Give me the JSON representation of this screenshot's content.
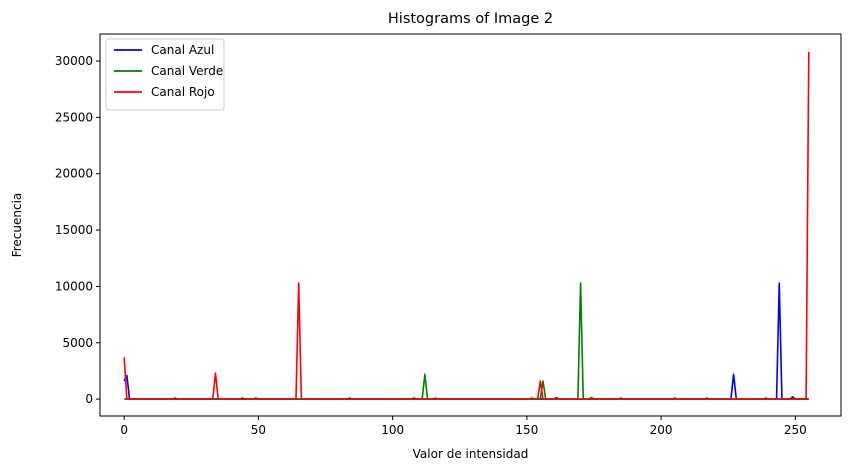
{
  "chart_data": {
    "type": "line",
    "title": "Histograms of Image 2",
    "xlabel": "Valor de intensidad",
    "ylabel": "Frecuencia",
    "xlim": [
      -9,
      267
    ],
    "ylim": [
      -1500,
      32400
    ],
    "x_ticks": [
      0,
      50,
      100,
      150,
      200,
      250
    ],
    "y_ticks": [
      0,
      5000,
      10000,
      15000,
      20000,
      25000,
      30000
    ],
    "grid": false,
    "legend_position": "top-left",
    "series": [
      {
        "name": "Canal Azul",
        "color": "#0000ff",
        "points": [
          [
            0,
            1600
          ],
          [
            1,
            2100
          ],
          [
            2,
            0
          ],
          [
            18,
            0
          ],
          [
            19,
            0
          ],
          [
            48,
            0
          ],
          [
            49,
            0
          ],
          [
            98,
            0
          ],
          [
            99,
            0
          ],
          [
            128,
            0
          ],
          [
            129,
            0
          ],
          [
            180,
            0
          ],
          [
            181,
            0
          ],
          [
            226,
            0
          ],
          [
            227,
            2200
          ],
          [
            228,
            0
          ],
          [
            230,
            0
          ],
          [
            243,
            0
          ],
          [
            244,
            10300
          ],
          [
            245,
            0
          ],
          [
            248,
            0
          ],
          [
            249,
            200
          ],
          [
            250,
            0
          ],
          [
            255,
            0
          ]
        ]
      },
      {
        "name": "Canal Verde",
        "color": "#008000",
        "points": [
          [
            0,
            0
          ],
          [
            18,
            0
          ],
          [
            19,
            0
          ],
          [
            88,
            0
          ],
          [
            89,
            0
          ],
          [
            111,
            0
          ],
          [
            112,
            2200
          ],
          [
            113,
            0
          ],
          [
            115,
            0
          ],
          [
            116,
            100
          ],
          [
            117,
            0
          ],
          [
            126,
            0
          ],
          [
            127,
            0
          ],
          [
            155,
            0
          ],
          [
            156,
            1600
          ],
          [
            157,
            0
          ],
          [
            160,
            0
          ],
          [
            161,
            150
          ],
          [
            162,
            0
          ],
          [
            169,
            0
          ],
          [
            170,
            10300
          ],
          [
            171,
            0
          ],
          [
            173,
            0
          ],
          [
            174,
            150
          ],
          [
            175,
            0
          ],
          [
            255,
            0
          ]
        ]
      },
      {
        "name": "Canal Rojo",
        "color": "#ff0000",
        "points": [
          [
            0,
            3700
          ],
          [
            1,
            0
          ],
          [
            18,
            0
          ],
          [
            19,
            100
          ],
          [
            20,
            0
          ],
          [
            33,
            0
          ],
          [
            34,
            2300
          ],
          [
            35,
            0
          ],
          [
            43,
            0
          ],
          [
            44,
            100
          ],
          [
            45,
            0
          ],
          [
            48,
            0
          ],
          [
            49,
            100
          ],
          [
            50,
            0
          ],
          [
            64,
            0
          ],
          [
            65,
            10300
          ],
          [
            66,
            0
          ],
          [
            83,
            0
          ],
          [
            84,
            100
          ],
          [
            85,
            0
          ],
          [
            100,
            0
          ],
          [
            101,
            0
          ],
          [
            107,
            0
          ],
          [
            108,
            100
          ],
          [
            109,
            0
          ],
          [
            130,
            0
          ],
          [
            131,
            0
          ],
          [
            151,
            0
          ],
          [
            152,
            100
          ],
          [
            153,
            0
          ],
          [
            154,
            0
          ],
          [
            155,
            1600
          ],
          [
            156,
            0
          ],
          [
            184,
            0
          ],
          [
            185,
            100
          ],
          [
            186,
            0
          ],
          [
            204,
            0
          ],
          [
            205,
            100
          ],
          [
            206,
            0
          ],
          [
            216,
            0
          ],
          [
            217,
            100
          ],
          [
            218,
            0
          ],
          [
            238,
            0
          ],
          [
            239,
            100
          ],
          [
            240,
            0
          ],
          [
            254,
            0
          ],
          [
            255,
            30800
          ]
        ]
      }
    ]
  }
}
